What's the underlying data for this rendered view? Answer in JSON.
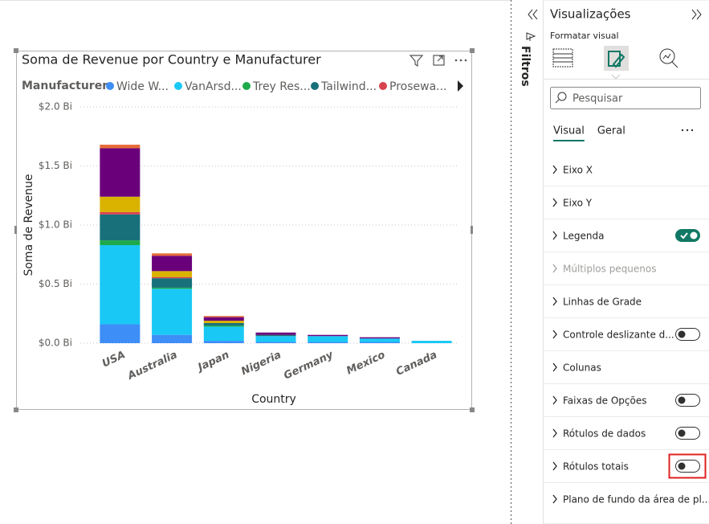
{
  "chart_data": {
    "type": "stacked_bar",
    "title": "Soma de Revenue por Country e Manufacturer",
    "legend_title": "Manufacturer",
    "x_label": "Country",
    "y_label": "Soma de Revenue",
    "categories": [
      "USA",
      "Australia",
      "Japan",
      "Nigeria",
      "Germany",
      "Mexico",
      "Canada"
    ],
    "series": [
      {
        "name": "Wide W...",
        "color": "#3E8EF7",
        "values": [
          0.16,
          0.07,
          0.02,
          0.01,
          0.01,
          0.01,
          0
        ]
      },
      {
        "name": "VanArsd...",
        "color": "#1AC8F5",
        "values": [
          0.67,
          0.39,
          0.12,
          0.05,
          0.05,
          0.03,
          0.02
        ]
      },
      {
        "name": "Trey Res...",
        "color": "#1EAA4A",
        "values": [
          0.04,
          0.01,
          0.01,
          0,
          0,
          0,
          0
        ]
      },
      {
        "name": "Tailwind...",
        "color": "#17707A",
        "values": [
          0.22,
          0.08,
          0.02,
          0.01,
          0,
          0,
          0
        ]
      },
      {
        "name": "Prosewa...",
        "color": "#D9434E",
        "values": [
          0.02,
          0.01,
          0,
          0,
          0,
          0,
          0
        ]
      },
      {
        "color": "#D9B300",
        "values": [
          0.13,
          0.05,
          0.02,
          0,
          0,
          0,
          0
        ]
      },
      {
        "color": "#6B007B",
        "values": [
          0.41,
          0.13,
          0.03,
          0.02,
          0.01,
          0.01,
          0
        ]
      },
      {
        "color": "#E66C37",
        "values": [
          0.03,
          0.02,
          0.01,
          0,
          0,
          0,
          0
        ]
      }
    ],
    "ylim": [
      0,
      2
    ],
    "yticks": [
      {
        "value": 0,
        "label": "$0.0 Bi"
      },
      {
        "value": 0.5,
        "label": "$0.5 Bi"
      },
      {
        "value": 1,
        "label": "$1.0 Bi"
      },
      {
        "value": 1.5,
        "label": "$1.5 Bi"
      },
      {
        "value": 2,
        "label": "$2.0 Bi"
      }
    ],
    "grid": true
  },
  "filters_pane": {
    "title": "Filtros"
  },
  "panel": {
    "title": "Visualizações",
    "subtitle": "Formatar visual",
    "search": "Pesquisar",
    "tabs": [
      {
        "label": "Visual",
        "active": true
      },
      {
        "label": "Geral",
        "active": false
      }
    ],
    "sections": [
      {
        "label": "Eixo X",
        "enabled": true
      },
      {
        "label": "Eixo Y",
        "enabled": true
      },
      {
        "label": "Legenda",
        "enabled": true,
        "toggle": "on"
      },
      {
        "label": "Múltiplos pequenos",
        "enabled": false
      },
      {
        "label": "Linhas de Grade",
        "enabled": true
      },
      {
        "label": "Controle deslizante d...",
        "enabled": true,
        "toggle": "off"
      },
      {
        "label": "Colunas",
        "enabled": true
      },
      {
        "label": "Faixas de Opções",
        "enabled": true,
        "toggle": "off"
      },
      {
        "label": "Rótulos de dados",
        "enabled": true,
        "toggle": "off"
      },
      {
        "label": "Rótulos totais",
        "enabled": true,
        "toggle": "off",
        "highlighted": true
      },
      {
        "label": "Plano de fundo da área de pl...",
        "enabled": true
      }
    ]
  }
}
